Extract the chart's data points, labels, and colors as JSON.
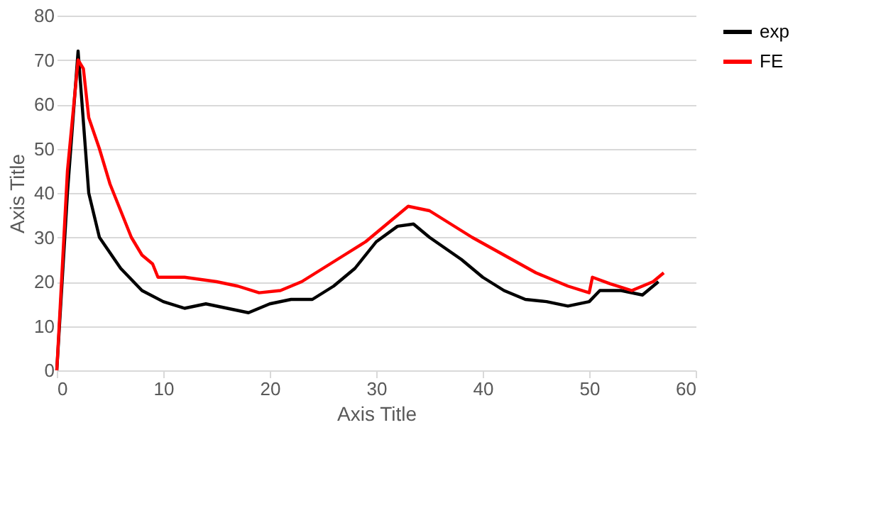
{
  "chart_data": {
    "type": "line",
    "xlabel": "Axis Title",
    "ylabel": "Axis Title",
    "xlim": [
      0,
      60
    ],
    "xticks": [
      0,
      10,
      20,
      30,
      40,
      50,
      60
    ],
    "ylim": [
      0,
      80
    ],
    "yticks": [
      0,
      10,
      20,
      30,
      40,
      50,
      60,
      70,
      80
    ],
    "grid": "y",
    "legend": "right",
    "marker": "none",
    "line_style": "solid",
    "series": [
      {
        "name": "exp",
        "color": "#000000",
        "x": [
          0,
          1,
          2,
          3,
          4,
          6,
          8,
          10,
          12,
          14,
          16,
          18,
          20,
          22,
          24,
          26,
          28,
          30,
          32,
          33.5,
          35,
          38,
          40,
          42,
          44,
          46,
          48,
          50,
          51,
          53,
          55,
          56.5
        ],
        "values": [
          0,
          40,
          72,
          40,
          30,
          23,
          18,
          15.5,
          14,
          15,
          14,
          13,
          15,
          16,
          16,
          19,
          23,
          29,
          32.5,
          33,
          30,
          25,
          21,
          18,
          16,
          15.5,
          14.5,
          15.5,
          18,
          18,
          17,
          20
        ]
      },
      {
        "name": "FE",
        "color": "#ff0000",
        "x": [
          0,
          1,
          2,
          2.5,
          3,
          4,
          5,
          7,
          8,
          9,
          9.5,
          12,
          15,
          17,
          19,
          21,
          23,
          25,
          27,
          29,
          31,
          33,
          35,
          37,
          39,
          42,
          45,
          48,
          50,
          50.3,
          52,
          54,
          56,
          57
        ],
        "values": [
          0,
          45,
          70,
          68,
          57,
          50,
          42,
          30,
          26,
          24,
          21,
          21,
          20,
          19,
          17.5,
          18,
          20,
          23,
          26,
          29,
          33,
          37,
          36,
          33,
          30,
          26,
          22,
          19,
          17.5,
          21,
          19.5,
          18,
          20,
          22
        ]
      }
    ]
  }
}
